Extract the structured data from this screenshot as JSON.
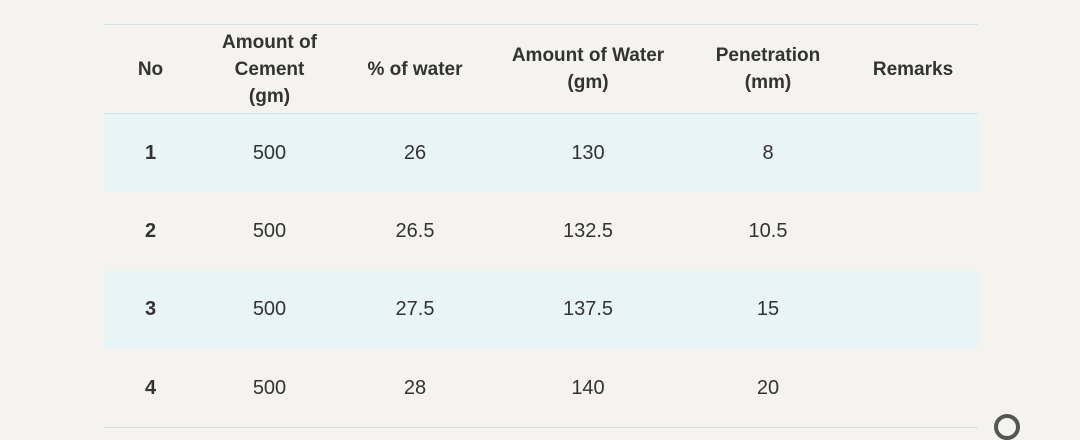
{
  "table": {
    "headers": [
      [
        "No"
      ],
      [
        "Amount of",
        "Cement",
        "(gm)"
      ],
      [
        "% of water"
      ],
      [
        "Amount of Water",
        "(gm)"
      ],
      [
        "Penetration",
        "(mm)"
      ],
      [
        "Remarks"
      ]
    ],
    "rows": [
      {
        "no": "1",
        "cement": "500",
        "water_pct": "26",
        "water_gm": "130",
        "penetration": "8",
        "remarks": ""
      },
      {
        "no": "2",
        "cement": "500",
        "water_pct": "26.5",
        "water_gm": "132.5",
        "penetration": "10.5",
        "remarks": ""
      },
      {
        "no": "3",
        "cement": "500",
        "water_pct": "27.5",
        "water_gm": "137.5",
        "penetration": "15",
        "remarks": ""
      },
      {
        "no": "4",
        "cement": "500",
        "water_pct": "28",
        "water_gm": "140",
        "penetration": "20",
        "remarks": ""
      }
    ],
    "row_shading": "#e9f4f6",
    "border_color": "#cde4ea"
  }
}
